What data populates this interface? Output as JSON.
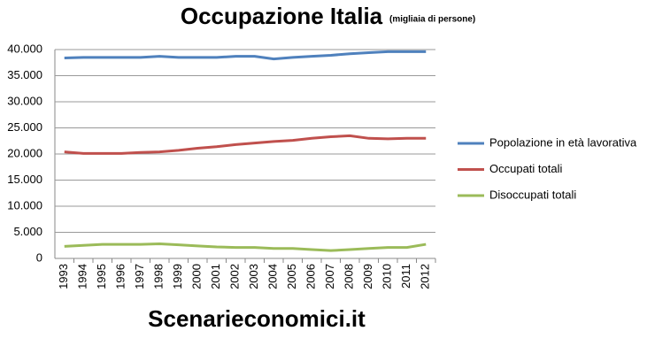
{
  "chart_data": {
    "type": "line",
    "title": "Occupazione Italia",
    "subtitle": "(migliaia  di persone)",
    "annotation": "Scenarieconomici.it",
    "categories": [
      "1993",
      "1994",
      "1995",
      "1996",
      "1997",
      "1998",
      "1999",
      "2000",
      "2001",
      "2002",
      "2003",
      "2004",
      "2005",
      "2006",
      "2007",
      "2008",
      "2009",
      "2010",
      "2011",
      "2012"
    ],
    "series": [
      {
        "name": "Popolazione in età lavorativa",
        "color": "#4f81bd",
        "values": [
          38400,
          38500,
          38500,
          38500,
          38500,
          38700,
          38500,
          38500,
          38500,
          38700,
          38700,
          38200,
          38500,
          38700,
          38900,
          39200,
          39400,
          39600,
          39600,
          39600
        ]
      },
      {
        "name": "Occupati totali",
        "color": "#c0504d",
        "values": [
          20400,
          20100,
          20100,
          20100,
          20300,
          20400,
          20700,
          21100,
          21400,
          21800,
          22100,
          22400,
          22600,
          23000,
          23300,
          23500,
          23000,
          22900,
          23000,
          23000
        ]
      },
      {
        "name": "Disoccupati totali",
        "color": "#9bbb59",
        "values": [
          2300,
          2500,
          2700,
          2700,
          2700,
          2800,
          2600,
          2400,
          2200,
          2100,
          2100,
          1900,
          1900,
          1700,
          1500,
          1700,
          1900,
          2100,
          2100,
          2700
        ]
      }
    ],
    "ylim": [
      0,
      40000
    ],
    "yticks": [
      0,
      {
        "value": 5000,
        "label": "5.000"
      },
      {
        "value": 10000,
        "label": "10.000"
      },
      {
        "value": 15000,
        "label": "15.000"
      },
      {
        "value": 20000,
        "label": "20.000"
      },
      {
        "value": 25000,
        "label": "25.000"
      },
      {
        "value": 30000,
        "label": "30.000"
      },
      {
        "value": 35000,
        "label": "35.000"
      },
      {
        "value": 40000,
        "label": "40.000"
      }
    ],
    "grid": true,
    "legend": "right"
  }
}
